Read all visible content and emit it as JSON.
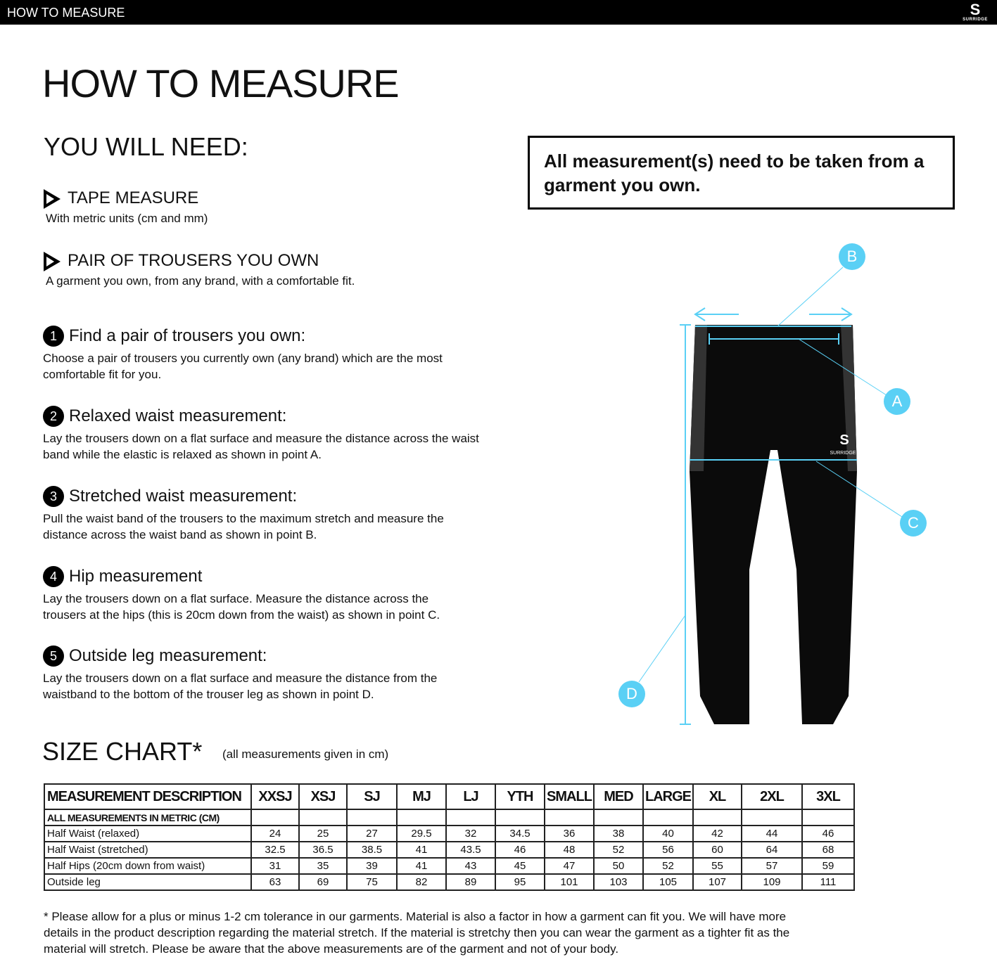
{
  "topbar": {
    "title": "HOW TO MEASURE",
    "logo_text": "SURRIDGE"
  },
  "page_title": "HOW TO MEASURE",
  "need": {
    "heading": "YOU WILL NEED:",
    "items": [
      {
        "title": "TAPE MEASURE",
        "desc": "With metric units (cm and mm)"
      },
      {
        "title": "PAIR OF TROUSERS YOU OWN",
        "desc": "A garment you own, from any brand, with a comfortable fit."
      }
    ]
  },
  "steps": [
    {
      "num": "1",
      "title": "Find a pair of trousers you own:",
      "desc": "Choose a pair of trousers you currently own (any brand) which are the most comfortable fit for you."
    },
    {
      "num": "2",
      "title": "Relaxed waist measurement:",
      "desc": "Lay the trousers down on a flat surface and measure the distance across the waist band while the elastic is relaxed as shown in point A."
    },
    {
      "num": "3",
      "title": "Stretched waist measurement:",
      "desc": "Pull the waist band of the trousers to the maximum stretch and measure the distance across the waist band as shown in point B."
    },
    {
      "num": "4",
      "title": "Hip measurement",
      "desc": "Lay the trousers down on a flat surface. Measure the distance across the trousers at the hips (this is 20cm down from the waist)  as shown in point C."
    },
    {
      "num": "5",
      "title": "Outside leg measurement:",
      "desc": "Lay the trousers down on a flat surface and measure the distance from the waistband to the bottom of the trouser  leg as shown in point D."
    }
  ],
  "notice": "All measurement(s) need to be taken from a garment you own.",
  "diagram": {
    "callouts": [
      "A",
      "B",
      "C",
      "D"
    ],
    "accent": "#5ad0f5",
    "garment_logo": "SURRIDGE"
  },
  "size_chart": {
    "title": "SIZE CHART*",
    "note": "(all measurements given in cm)",
    "headers": [
      "MEASUREMENT DESCRIPTION",
      "XXSJ",
      "XSJ",
      "SJ",
      "MJ",
      "LJ",
      "YTH",
      "SMALL",
      "MED",
      "LARGE",
      "XL",
      "2XL",
      "3XL"
    ],
    "subheader": "ALL MEASUREMENTS IN METRIC (CM)",
    "rows": [
      {
        "label": "Half Waist (relaxed)",
        "values": [
          "24",
          "25",
          "27",
          "29.5",
          "32",
          "34.5",
          "36",
          "38",
          "40",
          "42",
          "44",
          "46"
        ]
      },
      {
        "label": "Half Waist (stretched)",
        "values": [
          "32.5",
          "36.5",
          "38.5",
          "41",
          "43.5",
          "46",
          "48",
          "52",
          "56",
          "60",
          "64",
          "68"
        ]
      },
      {
        "label": "Half Hips (20cm down from waist)",
        "values": [
          "31",
          "35",
          "39",
          "41",
          "43",
          "45",
          "47",
          "50",
          "52",
          "55",
          "57",
          "59"
        ]
      },
      {
        "label": "Outside leg",
        "values": [
          "63",
          "69",
          "75",
          "82",
          "89",
          "95",
          "101",
          "103",
          "105",
          "107",
          "109",
          "111"
        ]
      }
    ]
  },
  "footnote": "* Please allow for a plus or minus 1-2 cm tolerance in our garments. Material is also a factor in how a garment can fit you. We will have more details in the product description regarding the material stretch.  If the material is stretchy then you can wear the garment as a tighter fit as the material will stretch.  Please be aware that the above measurements are of the garment and not of your body."
}
